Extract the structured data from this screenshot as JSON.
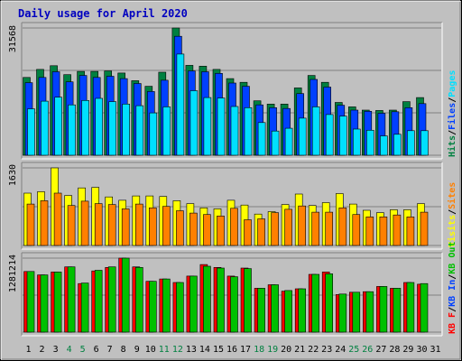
{
  "title": "Daily usage for April 2020",
  "colors": {
    "background": "#c0c0c0",
    "title": "#0000c0",
    "hits": "#008040",
    "files": "#0040ff",
    "pages": "#00e0ff",
    "visits": "#ffff00",
    "sites": "#ff8000",
    "kb_in": "#ff0000",
    "kb_out": "#00c000",
    "weekend_label": "#008040",
    "weekday_label": "#000000"
  },
  "chart_data": [
    {
      "type": "bar",
      "panel": "top",
      "max_label": "31568",
      "ymax": 31568,
      "categories": [
        "1",
        "2",
        "3",
        "4",
        "5",
        "6",
        "7",
        "8",
        "9",
        "10",
        "11",
        "12",
        "13",
        "14",
        "15",
        "16",
        "17",
        "18",
        "19",
        "20",
        "21",
        "22",
        "23",
        "24",
        "25",
        "26",
        "27",
        "28",
        "29",
        "30",
        "31"
      ],
      "legend": [
        {
          "text": "Hits",
          "color_key": "hits"
        },
        {
          "text": "/",
          "color_key": null
        },
        {
          "text": "Files",
          "color_key": "files"
        },
        {
          "text": "/",
          "color_key": null
        },
        {
          "text": "Pages",
          "color_key": "pages"
        }
      ],
      "series": [
        {
          "name": "Hits",
          "color_key": "hits",
          "values": [
            19300,
            21300,
            22200,
            20000,
            20800,
            20800,
            20900,
            20400,
            18500,
            17100,
            20600,
            31568,
            22300,
            22100,
            21300,
            19000,
            18100,
            13500,
            12700,
            12700,
            16700,
            19800,
            18100,
            13100,
            12000,
            11200,
            11100,
            11200,
            13300,
            14300,
            0
          ]
        },
        {
          "name": "Files",
          "color_key": "files",
          "values": [
            18000,
            19300,
            20700,
            18200,
            19800,
            19300,
            19600,
            19000,
            17800,
            15800,
            18600,
            29500,
            20900,
            20700,
            20300,
            17900,
            17100,
            12500,
            11800,
            11600,
            15300,
            18800,
            16900,
            12400,
            11200,
            10900,
            10400,
            10800,
            11800,
            12800,
            0
          ]
        },
        {
          "name": "Pages",
          "color_key": "pages",
          "values": [
            11500,
            13400,
            14400,
            12500,
            13600,
            14100,
            13300,
            12700,
            12300,
            10500,
            12000,
            25100,
            16000,
            14300,
            14200,
            12100,
            11800,
            8100,
            6000,
            6700,
            9200,
            12000,
            10100,
            9700,
            6500,
            6200,
            4800,
            5200,
            6100,
            6100,
            0
          ]
        }
      ]
    },
    {
      "type": "bar",
      "panel": "middle",
      "max_label": "1630",
      "ymax": 1630,
      "categories": [
        "1",
        "2",
        "3",
        "4",
        "5",
        "6",
        "7",
        "8",
        "9",
        "10",
        "11",
        "12",
        "13",
        "14",
        "15",
        "16",
        "17",
        "18",
        "19",
        "20",
        "21",
        "22",
        "23",
        "24",
        "25",
        "26",
        "27",
        "28",
        "29",
        "30",
        "31"
      ],
      "legend": [
        {
          "text": "Visits",
          "color_key": "visits"
        },
        {
          "text": "/",
          "color_key": null
        },
        {
          "text": "Sites",
          "color_key": "sites"
        }
      ],
      "series": [
        {
          "name": "Visits",
          "color_key": "visits",
          "values": [
            1100,
            1130,
            1630,
            1050,
            1210,
            1220,
            1020,
            950,
            1040,
            1040,
            1030,
            940,
            880,
            790,
            770,
            950,
            850,
            660,
            710,
            860,
            1080,
            840,
            900,
            1090,
            870,
            740,
            690,
            750,
            750,
            880,
            0
          ]
        },
        {
          "name": "Sites",
          "color_key": "sites",
          "values": [
            870,
            940,
            1100,
            840,
            930,
            880,
            860,
            770,
            870,
            790,
            820,
            730,
            680,
            650,
            620,
            780,
            540,
            560,
            690,
            760,
            830,
            700,
            700,
            790,
            650,
            600,
            600,
            640,
            600,
            700,
            0
          ]
        }
      ]
    },
    {
      "type": "bar",
      "panel": "bottom",
      "max_label": "1281214",
      "ymax": 1281214,
      "categories": [
        "1",
        "2",
        "3",
        "4",
        "5",
        "6",
        "7",
        "8",
        "9",
        "10",
        "11",
        "12",
        "13",
        "14",
        "15",
        "16",
        "17",
        "18",
        "19",
        "20",
        "21",
        "22",
        "23",
        "24",
        "25",
        "26",
        "27",
        "28",
        "29",
        "30",
        "31"
      ],
      "legend": [
        {
          "text": "KB F",
          "color_key": "kb_in"
        },
        {
          "text": "/",
          "color_key": null
        },
        {
          "text": "KB In",
          "color_key": "files"
        },
        {
          "text": "/",
          "color_key": null
        },
        {
          "text": "KB Out",
          "color_key": "kb_out"
        }
      ],
      "series": [
        {
          "name": "KB In",
          "color_key": "kb_in",
          "values": [
            1050000,
            990000,
            1040000,
            1130000,
            840000,
            1060000,
            1120000,
            1281214,
            1130000,
            880000,
            920000,
            860000,
            970000,
            1170000,
            1120000,
            970000,
            1110000,
            760000,
            820000,
            710000,
            750000,
            1000000,
            1040000,
            650000,
            690000,
            700000,
            790000,
            760000,
            860000,
            830000,
            0
          ]
        },
        {
          "name": "KB Out",
          "color_key": "kb_out",
          "values": [
            1050000,
            990000,
            1040000,
            1130000,
            850000,
            1070000,
            1130000,
            1281214,
            1120000,
            880000,
            920000,
            860000,
            970000,
            1140000,
            1110000,
            960000,
            1100000,
            760000,
            820000,
            720000,
            750000,
            1000000,
            1010000,
            660000,
            690000,
            700000,
            790000,
            760000,
            860000,
            840000,
            0
          ]
        }
      ]
    }
  ]
}
